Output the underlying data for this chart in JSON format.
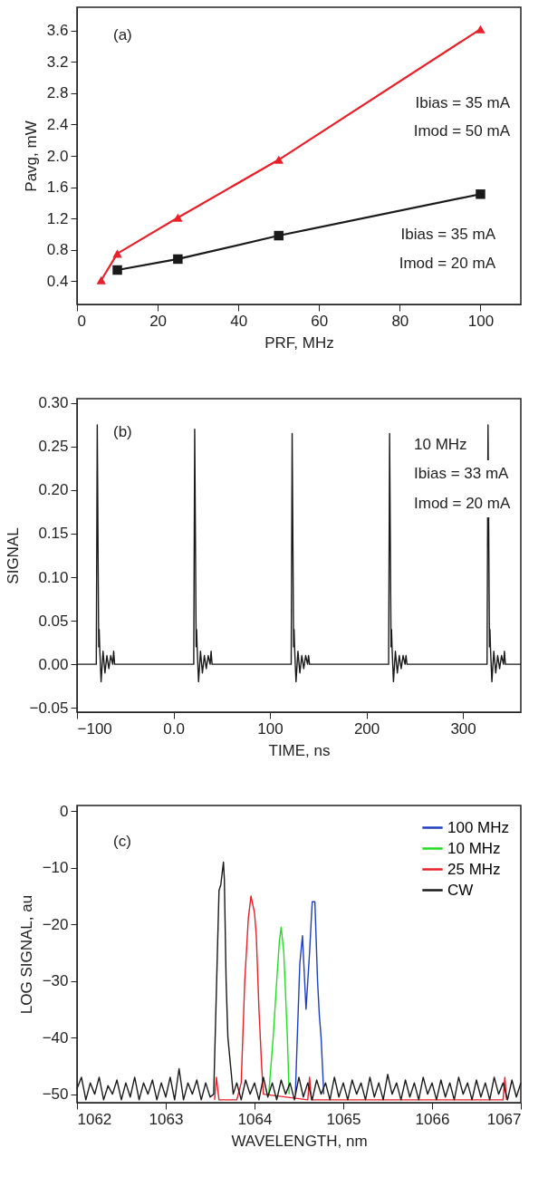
{
  "chart_data": [
    {
      "type": "line",
      "xlabel": "PRF, MHz",
      "ylabel": "Pavg, mW",
      "xlim": [
        0,
        110
      ],
      "ylim": [
        0.1,
        3.9
      ],
      "xticks": [
        0,
        20,
        40,
        60,
        80,
        100
      ],
      "yticks": [
        0.4,
        0.8,
        1.2,
        1.6,
        {
          "value": 2,
          "label": "2.0"
        },
        2.4,
        2.8,
        3.2,
        3.6
      ],
      "grid": false,
      "series": [
        {
          "color": "#e8202a",
          "marker": "triangle",
          "x": [
            6,
            10,
            25,
            50,
            100
          ],
          "values": [
            0.41,
            0.75,
            1.21,
            1.95,
            3.62
          ]
        },
        {
          "color": "#1a1a1a",
          "marker": "square",
          "x": [
            10,
            25,
            50,
            100
          ],
          "values": [
            0.54,
            0.68,
            0.98,
            1.51
          ]
        }
      ],
      "annotations": [
        "(a)",
        "Ibias = 35 mA",
        "Imod = 50 mA",
        "Ibias = 35 mA",
        "Imod = 20 mA"
      ]
    },
    {
      "type": "line",
      "xlabel": "TIME, ns",
      "ylabel": "SIGNAL",
      "xlim": [
        -100,
        360
      ],
      "ylim": [
        -0.055,
        0.305
      ],
      "xticks": [
        {
          "value": -100,
          "label": "−100"
        },
        {
          "value": 0,
          "label": "0.0"
        },
        100,
        200,
        300
      ],
      "yticks": [
        {
          "value": -0.05,
          "label": "−0.05"
        },
        {
          "value": 0,
          "label": "0.00"
        },
        0.05,
        {
          "value": 0.1,
          "label": "0.10"
        },
        0.15,
        {
          "value": 0.2,
          "label": "0.20"
        },
        0.25,
        {
          "value": 0.3,
          "label": "0.30"
        }
      ],
      "grid": false,
      "marker": "none",
      "series": [
        {
          "color": "#1a1a1a",
          "x": [
            -100,
            -80,
            -79,
            -77.5,
            -77,
            -76.5,
            -75,
            -73,
            -71,
            -69,
            -67,
            -65,
            -63,
            -62,
            -61,
            21,
            22,
            23.5,
            24,
            24.5,
            26,
            28,
            30,
            32,
            34,
            36,
            38,
            39,
            40,
            122,
            123,
            124.5,
            125,
            125.5,
            127,
            129,
            131,
            133,
            135,
            137,
            139,
            140,
            141,
            223,
            224,
            225.5,
            226,
            226.5,
            228,
            230,
            232,
            234,
            236,
            238,
            240,
            241,
            242,
            325,
            326,
            327.5,
            328,
            328.5,
            330,
            332,
            334,
            336,
            338,
            340,
            342,
            343,
            344,
            360
          ],
          "values": [
            0,
            0,
            0.275,
            0.02,
            0.04,
            0.02,
            -0.02,
            0.015,
            -0.01,
            0.01,
            -0.005,
            0.01,
            0,
            0.015,
            0,
            0,
            0.27,
            0.02,
            0.04,
            0.02,
            -0.02,
            0.015,
            -0.01,
            0.01,
            -0.005,
            0.01,
            0,
            0.015,
            0,
            0,
            0.265,
            0.02,
            0.04,
            0.02,
            -0.02,
            0.015,
            -0.01,
            0.01,
            -0.005,
            0.01,
            0,
            0.01,
            0,
            0,
            0.265,
            0.02,
            0.04,
            0.02,
            -0.02,
            0.015,
            -0.01,
            0.01,
            -0.005,
            0.01,
            0,
            0.01,
            0,
            0,
            0.275,
            0.02,
            0.04,
            0.02,
            -0.02,
            0.015,
            -0.01,
            0.01,
            -0.005,
            0.01,
            0,
            0.015,
            0,
            0
          ]
        }
      ],
      "annotations": [
        "(b)",
        "10 MHz",
        "Ibias = 33 mA",
        "Imod = 20 mA"
      ]
    },
    {
      "type": "line",
      "xlabel": "WAVELENGTH, nm",
      "ylabel": "LOG SIGNAL, au",
      "xlim": [
        1062,
        1067
      ],
      "ylim": [
        -51.5,
        1
      ],
      "xticks": [
        1062,
        1063,
        1064,
        1065,
        1066,
        1067
      ],
      "yticks": [
        {
          "value": -50,
          "label": "−50"
        },
        {
          "value": -40,
          "label": "−40"
        },
        {
          "value": -30,
          "label": "−30"
        },
        {
          "value": -20,
          "label": "−20"
        },
        {
          "value": -10,
          "label": "−10"
        },
        0
      ],
      "grid": false,
      "marker": "none",
      "legend": "top right",
      "series": [
        {
          "name": "100 MHz",
          "color": "#1f3fbf",
          "x": [
            1064.46,
            1064.51,
            1064.54,
            1064.58,
            1064.62,
            1064.65,
            1064.68,
            1064.71,
            1064.73,
            1064.75,
            1064.78
          ],
          "values": [
            -50,
            -27,
            -22,
            -35,
            -25,
            -16,
            -16,
            -30,
            -36,
            -40,
            -50
          ]
        },
        {
          "name": "10 MHz",
          "color": "#22dd22",
          "x": [
            1064.16,
            1064.21,
            1064.25,
            1064.28,
            1064.3,
            1064.33,
            1064.37,
            1064.39
          ],
          "values": [
            -50,
            -40,
            -30,
            -23,
            -20.5,
            -25,
            -40,
            -50
          ]
        },
        {
          "name": "25 MHz",
          "color": "#e8202a",
          "x": [
            1063.55,
            1063.57,
            1063.6,
            1063.8,
            1063.85,
            1063.89,
            1063.93,
            1063.96,
            1064.0,
            1064.02,
            1064.05,
            1064.08,
            1064.1,
            1064.6,
            1064.62,
            1064.64,
            1066.8,
            1066.82,
            1066.84
          ],
          "values": [
            -51,
            -47,
            -51,
            -51,
            -48,
            -30,
            -19,
            -15,
            -18,
            -22,
            -35,
            -45,
            -50,
            -51,
            -47,
            -51,
            -51,
            -47,
            -51
          ]
        },
        {
          "name": "CW",
          "color": "#1a1a1a",
          "x": [
            1062.0,
            1062.05,
            1062.1,
            1062.15,
            1062.2,
            1062.25,
            1062.3,
            1062.35,
            1062.4,
            1062.45,
            1062.5,
            1062.55,
            1062.6,
            1062.65,
            1062.7,
            1062.75,
            1062.8,
            1062.85,
            1062.9,
            1062.95,
            1063.0,
            1063.05,
            1063.1,
            1063.15,
            1063.2,
            1063.25,
            1063.3,
            1063.35,
            1063.4,
            1063.45,
            1063.5,
            1063.54,
            1063.6,
            1063.62,
            1063.65,
            1063.66,
            1063.68,
            1063.7,
            1063.73,
            1063.76,
            1063.8,
            1063.85,
            1063.9,
            1063.95,
            1064.0,
            1064.05,
            1064.1,
            1064.15,
            1064.2,
            1064.25,
            1064.3,
            1064.35,
            1064.4,
            1064.45,
            1064.5,
            1064.55,
            1064.6,
            1064.65,
            1064.7,
            1064.75,
            1064.8,
            1064.85,
            1064.9,
            1064.95,
            1065.0,
            1065.05,
            1065.1,
            1065.15,
            1065.2,
            1065.25,
            1065.3,
            1065.35,
            1065.4,
            1065.45,
            1065.5,
            1065.55,
            1065.6,
            1065.65,
            1065.7,
            1065.75,
            1065.8,
            1065.85,
            1065.9,
            1065.95,
            1066.0,
            1066.05,
            1066.1,
            1066.15,
            1066.2,
            1066.25,
            1066.3,
            1066.35,
            1066.4,
            1066.45,
            1066.5,
            1066.55,
            1066.6,
            1066.65,
            1066.7,
            1066.75,
            1066.8,
            1066.85,
            1066.9,
            1066.95,
            1067.0
          ],
          "values": [
            -49,
            -47,
            -51,
            -48,
            -50,
            -47,
            -51,
            -48.5,
            -50,
            -47.5,
            -51,
            -48,
            -50.5,
            -47,
            -51,
            -48,
            -50,
            -47.5,
            -51,
            -48,
            -50.5,
            -47,
            -51,
            -45.5,
            -51,
            -48,
            -50,
            -47.5,
            -51,
            -48,
            -50.5,
            -50,
            -14,
            -13,
            -9,
            -12,
            -30,
            -40,
            -45,
            -50,
            -48,
            -51,
            -47.5,
            -50,
            -48,
            -51,
            -47,
            -50.5,
            -48,
            -51,
            -47.5,
            -50,
            -48,
            -51,
            -47,
            -50.5,
            -48,
            -51,
            -47.5,
            -50,
            -48,
            -51,
            -47,
            -50.5,
            -48,
            -51,
            -47.5,
            -50,
            -48,
            -51,
            -47,
            -50.5,
            -48,
            -51,
            -46.5,
            -50,
            -48,
            -51,
            -47.5,
            -50.5,
            -48,
            -51,
            -47,
            -50,
            -48,
            -51,
            -47.5,
            -50.5,
            -48,
            -51,
            -47,
            -50,
            -48,
            -51,
            -47.5,
            -50.5,
            -48,
            -51,
            -47,
            -50,
            -48,
            -51,
            -47.5,
            -50.5,
            -48
          ]
        }
      ],
      "annotations": [
        "(c)"
      ]
    }
  ]
}
